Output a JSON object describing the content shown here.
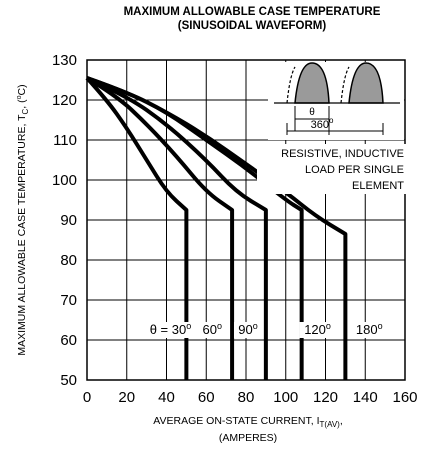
{
  "chart_data": {
    "type": "line",
    "title": "MAXIMUM ALLOWABLE CASE TEMPERATURE",
    "subtitle": "(SINUSOIDAL WAVEFORM)",
    "ylabel": "MAXIMUM ALLOWABLE CASE TEMPERATURE, T",
    "ylabel_sub": "C",
    "ylabel_unit": ", (",
    "ylabel_unit_sup": "o",
    "ylabel_unit_end": "C)",
    "xlabel": "AVERAGE ON-STATE  CURRENT, I",
    "xlabel_sub": "T(AV)",
    "xlabel_end": ",",
    "xlabel_line2": "(AMPERES)",
    "xlim": [
      0,
      160
    ],
    "ylim": [
      50,
      130
    ],
    "x_ticks": [
      "0",
      "20",
      "40",
      "60",
      "80",
      "100",
      "120",
      "140",
      "160"
    ],
    "y_ticks": [
      "50",
      "60",
      "70",
      "80",
      "90",
      "100",
      "110",
      "120",
      "130"
    ],
    "grid": true,
    "series": [
      {
        "label": "θ = 30",
        "label_sup": "o",
        "label_x": 42,
        "label_y": 61.5,
        "points": [
          [
            0,
            125.5
          ],
          [
            10,
            120
          ],
          [
            20,
            113
          ],
          [
            30,
            105
          ],
          [
            40,
            97
          ],
          [
            50,
            92.5
          ],
          [
            50,
            50
          ]
        ]
      },
      {
        "label": "60",
        "label_sup": "o",
        "label_x": 63,
        "label_y": 61.5,
        "points": [
          [
            0,
            125.5
          ],
          [
            15,
            121
          ],
          [
            30,
            114
          ],
          [
            45,
            106
          ],
          [
            60,
            97
          ],
          [
            73,
            92.5
          ],
          [
            73,
            50
          ]
        ]
      },
      {
        "label": "90",
        "label_sup": "o",
        "label_x": 81,
        "label_y": 61.5,
        "points": [
          [
            0,
            125.5
          ],
          [
            20,
            121
          ],
          [
            40,
            114
          ],
          [
            60,
            105
          ],
          [
            75,
            97
          ],
          [
            90,
            92.5
          ],
          [
            90,
            50
          ]
        ]
      },
      {
        "label": "120",
        "label_sup": "o",
        "label_x": 116,
        "label_y": 61.5,
        "points": [
          [
            0,
            125.5
          ],
          [
            20,
            122
          ],
          [
            40,
            117
          ],
          [
            60,
            110
          ],
          [
            80,
            103
          ],
          [
            100,
            95
          ],
          [
            108,
            92.5
          ],
          [
            108,
            50
          ]
        ]
      },
      {
        "label": "180",
        "label_sup": "o",
        "label_x": 142,
        "label_y": 61.5,
        "points": [
          [
            0,
            125.5
          ],
          [
            20,
            122
          ],
          [
            40,
            117
          ],
          [
            60,
            111
          ],
          [
            80,
            104
          ],
          [
            100,
            97
          ],
          [
            115,
            91
          ],
          [
            130,
            86.5
          ],
          [
            130,
            50
          ]
        ]
      }
    ],
    "inset": {
      "theta_label": "θ",
      "period_label": "360",
      "period_label_sup": "o"
    },
    "annotation_lines": [
      "RESISTIVE, INDUCTIVE",
      "LOAD PER SINGLE",
      "ELEMENT"
    ]
  }
}
